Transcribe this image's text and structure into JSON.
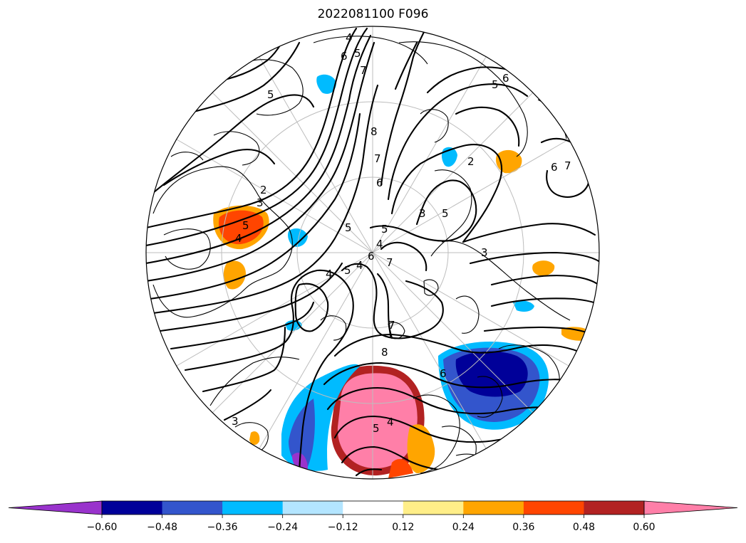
{
  "title": "2022081100 F096",
  "colorbar": {
    "ticks": [
      "−0.60",
      "−0.48",
      "−0.36",
      "−0.24",
      "−0.12",
      "0.12",
      "0.24",
      "0.36",
      "0.48",
      "0.60"
    ],
    "under_color": "#9933cc",
    "over_color": "#ff7fa8",
    "colors": [
      "#000099",
      "#3355cc",
      "#00bbff",
      "#b3e5ff",
      "#ffffff",
      "#ffee88",
      "#ffa500",
      "#ff4500",
      "#b22222"
    ],
    "extend": "both"
  },
  "contour_labels": [
    "4",
    "5",
    "6",
    "7",
    "5",
    "8",
    "7",
    "6",
    "5",
    "4",
    "6",
    "7",
    "5",
    "3",
    "2",
    "5",
    "3",
    "6",
    "7",
    "6",
    "5",
    "4",
    "8",
    "7",
    "5",
    "4",
    "3",
    "5",
    "4",
    "6",
    "5",
    "4",
    "3",
    "2"
  ]
}
